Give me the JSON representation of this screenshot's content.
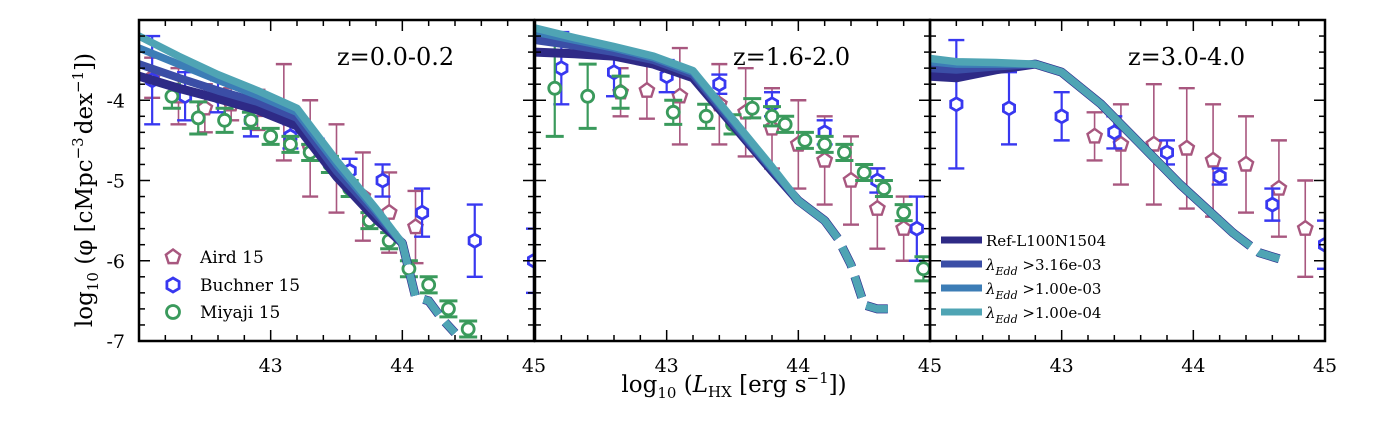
{
  "chart_data": {
    "type": "line",
    "xlabel": "log10(L_HX [erg s^-1])",
    "xlabel_parts": {
      "log": "log",
      "sub": "10",
      "lpar": " (",
      "L": "L",
      "Lsub": "HX",
      "units": " [erg s",
      "exp": "−1",
      "tail": "])"
    },
    "ylabel": "log10 (φ [cMpc^-3 dex^-1])",
    "ylabel_parts": {
      "log": "log",
      "sub": "10",
      "open": " (φ [cMpc",
      "exp1": "−3",
      "mid": "dex",
      "exp2": "−1",
      "close": "])"
    },
    "xlim": [
      42.0,
      45.0
    ],
    "ylim": [
      -7.0,
      -3.0
    ],
    "xticks": [
      43,
      44,
      45
    ],
    "xtick_labels": [
      "43",
      "44",
      "45"
    ],
    "yticks": [
      -4,
      -5,
      -6,
      -7
    ],
    "ytick_labels": [
      "-4",
      "-5",
      "-6",
      "-7"
    ],
    "colors": {
      "aird": "#a8577f",
      "buchner": "#3838f0",
      "miyaji": "#3a9a5c",
      "s0": "#2e2a86",
      "s1": "#3b4ea6",
      "s2": "#3c7db6",
      "s3": "#4fa4b4"
    },
    "legend_left": [
      {
        "label": "Aird 15",
        "marker": "pentagon",
        "color_key": "aird"
      },
      {
        "label": "Buchner 15",
        "marker": "hexagon",
        "color_key": "buchner"
      },
      {
        "label": "Miyaji 15",
        "marker": "circle",
        "color_key": "miyaji"
      }
    ],
    "legend_right_parts": [
      {
        "label": "Ref-L100N1504",
        "color_key": "s0",
        "plain": true
      },
      {
        "lambda": "λ",
        "sub": "Edd",
        "cond": " >3.16e-03",
        "color_key": "s1"
      },
      {
        "lambda": "λ",
        "sub": "Edd",
        "cond": " >1.00e-03",
        "color_key": "s2"
      },
      {
        "lambda": "λ",
        "sub": "Edd",
        "cond": " >1.00e-04",
        "color_key": "s3"
      }
    ],
    "panels": [
      {
        "title": "z=0.0-0.2",
        "series": [
          {
            "name": "Ref-L100N1504",
            "x": [
              42.0,
              42.3,
              42.6,
              42.9,
              43.2,
              43.5,
              43.8,
              44.0,
              44.1,
              44.2,
              44.3,
              44.4
            ],
            "y": [
              -3.7,
              -3.85,
              -3.98,
              -4.12,
              -4.32,
              -4.95,
              -5.48,
              -5.78,
              -6.45,
              -6.5,
              -6.72,
              -6.9
            ]
          },
          {
            "name": "λEdd >3.16e-03",
            "x": [
              42.0,
              42.3,
              42.6,
              42.9,
              43.2,
              43.5,
              43.8,
              44.0,
              44.1,
              44.2,
              44.3,
              44.4
            ],
            "y": [
              -3.55,
              -3.72,
              -3.88,
              -4.02,
              -4.22,
              -4.88,
              -5.42,
              -5.78,
              -6.45,
              -6.5,
              -6.72,
              -6.9
            ]
          },
          {
            "name": "λEdd >1.00e-03",
            "x": [
              42.0,
              42.3,
              42.6,
              42.9,
              43.2,
              43.5,
              43.8,
              44.0,
              44.1,
              44.2,
              44.3,
              44.4
            ],
            "y": [
              -3.35,
              -3.55,
              -3.75,
              -3.94,
              -4.15,
              -4.8,
              -5.38,
              -5.78,
              -6.45,
              -6.5,
              -6.72,
              -6.9
            ]
          },
          {
            "name": "λEdd >1.00e-04",
            "x": [
              42.0,
              42.3,
              42.6,
              42.9,
              43.2,
              43.5,
              43.8,
              44.0,
              44.1,
              44.2,
              44.3,
              44.4
            ],
            "y": [
              -3.2,
              -3.45,
              -3.68,
              -3.88,
              -4.1,
              -4.75,
              -5.35,
              -5.78,
              -6.45,
              -6.5,
              -6.72,
              -6.9
            ]
          }
        ],
        "dashed_from_index": 7,
        "observations": {
          "aird": {
            "x": [
              42.1,
              42.3,
              42.5,
              42.7,
              42.9,
              43.1,
              43.3,
              43.5,
              43.7,
              43.9,
              44.1
            ],
            "y": [
              -3.72,
              -3.95,
              -4.1,
              -4.05,
              -4.12,
              -4.15,
              -4.6,
              -4.85,
              -5.2,
              -5.4,
              -5.58
            ],
            "err": [
              0.25,
              0.35,
              0.3,
              0.2,
              0.25,
              0.6,
              0.6,
              0.55,
              0.55,
              0.5,
              0.45
            ]
          },
          "buchner": {
            "x": [
              42.1,
              42.35,
              42.6,
              42.85,
              43.15,
              43.35,
              43.6,
              43.85,
              44.15,
              44.55,
              45.0
            ],
            "y": [
              -3.75,
              -3.95,
              -3.95,
              -4.25,
              -4.45,
              -4.58,
              -4.88,
              -5.0,
              -5.4,
              -5.75,
              -6.0
            ],
            "err": [
              0.55,
              0.3,
              0.2,
              0.2,
              0.15,
              0.1,
              0.15,
              0.2,
              0.3,
              0.45,
              0.4
            ]
          },
          "miyaji": {
            "x": [
              42.25,
              42.45,
              42.65,
              42.85,
              43.0,
              43.15,
              43.3,
              43.45,
              43.6,
              43.75,
              43.9,
              44.05,
              44.2,
              44.35,
              44.5
            ],
            "y": [
              -3.95,
              -4.22,
              -4.25,
              -4.25,
              -4.45,
              -4.55,
              -4.65,
              -4.8,
              -5.1,
              -5.5,
              -5.75,
              -6.1,
              -6.3,
              -6.6,
              -6.85
            ],
            "err": [
              0.15,
              0.2,
              0.15,
              0.1,
              0.1,
              0.1,
              0.1,
              0.1,
              0.1,
              0.1,
              0.1,
              0.1,
              0.1,
              0.1,
              0.1
            ]
          }
        }
      },
      {
        "title": "z=1.6-2.0",
        "series": [
          {
            "name": "Ref-L100N1504",
            "x": [
              42.0,
              42.3,
              42.6,
              42.9,
              43.2,
              43.5,
              43.8,
              44.0,
              44.2,
              44.3,
              44.4,
              44.5,
              44.6,
              44.7
            ],
            "y": [
              -3.4,
              -3.42,
              -3.45,
              -3.55,
              -3.72,
              -4.3,
              -4.88,
              -5.25,
              -5.5,
              -5.72,
              -6.05,
              -6.55,
              -6.6,
              -6.6
            ]
          },
          {
            "name": "λEdd >3.16e-03",
            "x": [
              42.0,
              42.3,
              42.6,
              42.9,
              43.2,
              43.5,
              43.8,
              44.0,
              44.2,
              44.3,
              44.4,
              44.5,
              44.6,
              44.7
            ],
            "y": [
              -3.25,
              -3.32,
              -3.4,
              -3.5,
              -3.68,
              -4.28,
              -4.86,
              -5.25,
              -5.5,
              -5.72,
              -6.05,
              -6.55,
              -6.6,
              -6.6
            ]
          },
          {
            "name": "λEdd >1.00e-03",
            "x": [
              42.0,
              42.3,
              42.6,
              42.9,
              43.2,
              43.5,
              43.8,
              44.0,
              44.2,
              44.3,
              44.4,
              44.5,
              44.6,
              44.7
            ],
            "y": [
              -3.15,
              -3.25,
              -3.35,
              -3.47,
              -3.65,
              -4.25,
              -4.85,
              -5.25,
              -5.5,
              -5.72,
              -6.05,
              -6.55,
              -6.6,
              -6.6
            ]
          },
          {
            "name": "λEdd >1.00e-04",
            "x": [
              42.0,
              42.3,
              42.6,
              42.9,
              43.2,
              43.5,
              43.8,
              44.0,
              44.2,
              44.3,
              44.4,
              44.5,
              44.6,
              44.7
            ],
            "y": [
              -3.1,
              -3.22,
              -3.33,
              -3.45,
              -3.63,
              -4.23,
              -4.83,
              -5.25,
              -5.5,
              -5.72,
              -6.05,
              -6.55,
              -6.6,
              -6.6
            ]
          }
        ],
        "dashed_from_index": 8,
        "observations": {
          "aird": {
            "x": [
              42.65,
              42.85,
              43.1,
              43.4,
              43.6,
              43.8,
              44.0,
              44.2,
              44.4,
              44.6,
              44.8
            ],
            "y": [
              -3.9,
              -3.88,
              -3.95,
              -4.05,
              -4.15,
              -4.35,
              -4.55,
              -4.75,
              -5.0,
              -5.35,
              -5.6
            ],
            "err": [
              0.3,
              0.35,
              0.6,
              0.5,
              0.55,
              0.5,
              0.55,
              0.55,
              0.55,
              0.5,
              0.4
            ]
          },
          "buchner": {
            "x": [
              42.2,
              42.6,
              43.0,
              43.4,
              43.8,
              44.2,
              44.6,
              44.9
            ],
            "y": [
              -3.6,
              -3.65,
              -3.7,
              -3.8,
              -4.05,
              -4.4,
              -5.0,
              -5.6
            ],
            "err": [
              0.45,
              0.3,
              0.2,
              0.12,
              0.15,
              0.15,
              0.15,
              0.4
            ]
          },
          "miyaji": {
            "x": [
              42.15,
              42.4,
              42.65,
              43.05,
              43.3,
              43.5,
              43.65,
              43.8,
              43.9,
              44.05,
              44.2,
              44.35,
              44.5,
              44.65,
              44.8,
              44.95
            ],
            "y": [
              -3.85,
              -3.95,
              -3.9,
              -4.15,
              -4.2,
              -4.3,
              -4.1,
              -4.2,
              -4.3,
              -4.5,
              -4.55,
              -4.65,
              -4.9,
              -5.1,
              -5.4,
              -6.1
            ],
            "err": [
              0.6,
              0.4,
              0.2,
              0.15,
              0.15,
              0.12,
              0.12,
              0.12,
              0.1,
              0.1,
              0.1,
              0.1,
              0.1,
              0.1,
              0.1,
              0.15
            ]
          }
        }
      },
      {
        "title": "z=3.0-4.0",
        "series": [
          {
            "name": "Ref-L100N1504",
            "x": [
              42.0,
              42.2,
              42.5,
              42.8,
              43.0,
              43.3,
              43.6,
              43.9,
              44.1,
              44.3,
              44.5,
              44.7
            ],
            "y": [
              -3.7,
              -3.72,
              -3.62,
              -3.55,
              -3.65,
              -4.05,
              -4.55,
              -5.05,
              -5.35,
              -5.65,
              -5.9,
              -6.0
            ]
          },
          {
            "name": "λEdd >3.16e-03",
            "x": [
              42.0,
              42.2,
              42.5,
              42.8,
              43.0,
              43.3,
              43.6,
              43.9,
              44.1,
              44.3,
              44.5,
              44.7
            ],
            "y": [
              -3.6,
              -3.62,
              -3.58,
              -3.55,
              -3.65,
              -4.05,
              -4.55,
              -5.05,
              -5.35,
              -5.65,
              -5.9,
              -6.0
            ]
          },
          {
            "name": "λEdd >1.00e-03",
            "x": [
              42.0,
              42.2,
              42.5,
              42.8,
              43.0,
              43.3,
              43.6,
              43.9,
              44.1,
              44.3,
              44.5,
              44.7
            ],
            "y": [
              -3.52,
              -3.55,
              -3.55,
              -3.55,
              -3.65,
              -4.05,
              -4.55,
              -5.05,
              -5.35,
              -5.65,
              -5.9,
              -6.0
            ]
          },
          {
            "name": "λEdd >1.00e-04",
            "x": [
              42.0,
              42.2,
              42.5,
              42.8,
              43.0,
              43.3,
              43.6,
              43.9,
              44.1,
              44.3,
              44.5,
              44.7
            ],
            "y": [
              -3.48,
              -3.52,
              -3.53,
              -3.55,
              -3.65,
              -4.05,
              -4.55,
              -5.05,
              -5.35,
              -5.65,
              -5.9,
              -6.0
            ]
          }
        ],
        "dashed_from_index": 9,
        "observations": {
          "aird": {
            "x": [
              43.25,
              43.45,
              43.7,
              43.95,
              44.15,
              44.4,
              44.65,
              44.85
            ],
            "y": [
              -4.45,
              -4.55,
              -4.55,
              -4.6,
              -4.75,
              -4.8,
              -5.1,
              -5.6
            ],
            "err": [
              0.3,
              0.5,
              0.75,
              0.75,
              0.7,
              0.6,
              0.6,
              0.6
            ]
          },
          "buchner": {
            "x": [
              42.2,
              42.6,
              43.0,
              43.4,
              43.8,
              44.2,
              44.6,
              45.0
            ],
            "y": [
              -4.05,
              -4.1,
              -4.2,
              -4.4,
              -4.65,
              -4.95,
              -5.3,
              -5.8
            ],
            "err": [
              0.8,
              0.45,
              0.3,
              0.2,
              0.15,
              0.1,
              0.2,
              0.3
            ]
          }
        }
      }
    ]
  }
}
